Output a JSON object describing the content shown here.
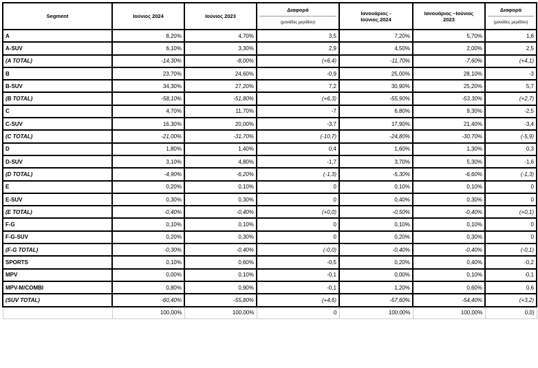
{
  "headers": {
    "segment": "Segment",
    "jun2024": "Ιούνιος 2024",
    "jun2023": "Ιούνιος 2023",
    "diff": "Διαφορά",
    "diff_sub": "(μονάδες μεριδίου)",
    "ytd2024": "Ιανουάριος - Ιούνιος 2024",
    "ytd2023": "Ιανουάριος –Ιούνιος 2023",
    "diff2": "Διαφορά",
    "diff2_sub": "(μονάδες μεριδίου)"
  },
  "rows": [
    {
      "segment": "A",
      "jun2024": "8,20%",
      "jun2023": "4,70%",
      "diff": "3,5",
      "ytd2024": "7,20%",
      "ytd2023": "5,70%",
      "diff2": "1,6",
      "total": false
    },
    {
      "segment": "A-SUV",
      "jun2024": "6,10%",
      "jun2023": "3,30%",
      "diff": "2,9",
      "ytd2024": "4,50%",
      "ytd2023": "2,00%",
      "diff2": "2,5",
      "total": false
    },
    {
      "segment": "(A TOTAL)",
      "jun2024": "-14,30%",
      "jun2023": "-8,00%",
      "diff": "(+6,4)",
      "ytd2024": "-11,70%",
      "ytd2023": "-7,60%",
      "diff2": "(+4,1)",
      "total": true
    },
    {
      "segment": "B",
      "jun2024": "23,70%",
      "jun2023": "24,60%",
      "diff": "-0,9",
      "ytd2024": "25,00%",
      "ytd2023": "28,10%",
      "diff2": "-3",
      "total": false
    },
    {
      "segment": "B-SUV",
      "jun2024": "34,30%",
      "jun2023": "27,20%",
      "diff": "7,2",
      "ytd2024": "30,90%",
      "ytd2023": "25,20%",
      "diff2": "5,7",
      "total": false
    },
    {
      "segment": "(B TOTAL)",
      "jun2024": "-58,10%",
      "jun2023": "-51,80%",
      "diff": "(+6,3)",
      "ytd2024": "-55,90%",
      "ytd2023": "-53,30%",
      "diff2": "(+2,7)",
      "total": true
    },
    {
      "segment": "C",
      "jun2024": "4,70%",
      "jun2023": "11,70%",
      "diff": "-7",
      "ytd2024": "6,80%",
      "ytd2023": "9,30%",
      "diff2": "-2,5",
      "total": false
    },
    {
      "segment": "C-SUV",
      "jun2024": "16,30%",
      "jun2023": "20,00%",
      "diff": "-3,7",
      "ytd2024": "17,90%",
      "ytd2023": "21,40%",
      "diff2": "-3,4",
      "total": false
    },
    {
      "segment": "(C TOTAL)",
      "jun2024": "-21,00%",
      "jun2023": "-31,70%",
      "diff": "(-10,7)",
      "ytd2024": "-24,80%",
      "ytd2023": "-30,70%",
      "diff2": "(-5,9)",
      "total": true
    },
    {
      "segment": "D",
      "jun2024": "1,80%",
      "jun2023": "1,40%",
      "diff": "0,4",
      "ytd2024": "1,60%",
      "ytd2023": "1,30%",
      "diff2": "0,3",
      "total": false
    },
    {
      "segment": "D-SUV",
      "jun2024": "3,10%",
      "jun2023": "4,80%",
      "diff": "-1,7",
      "ytd2024": "3,70%",
      "ytd2023": "5,30%",
      "diff2": "-1,6",
      "total": false
    },
    {
      "segment": "(D TOTAL)",
      "jun2024": "-4,90%",
      "jun2023": "-6,20%",
      "diff": "(-1,3)",
      "ytd2024": "-5,30%",
      "ytd2023": "-6,60%",
      "diff2": "(-1,3)",
      "total": true
    },
    {
      "segment": "E",
      "jun2024": "0,20%",
      "jun2023": "0,10%",
      "diff": "0",
      "ytd2024": "0,10%",
      "ytd2023": "0,10%",
      "diff2": "0",
      "total": false
    },
    {
      "segment": "E-SUV",
      "jun2024": "0,30%",
      "jun2023": "0,30%",
      "diff": "0",
      "ytd2024": "0,40%",
      "ytd2023": "0,30%",
      "diff2": "0",
      "total": false
    },
    {
      "segment": "(E TOTAL)",
      "jun2024": "-0,40%",
      "jun2023": "-0,40%",
      "diff": "(+0,0)",
      "ytd2024": "-0,50%",
      "ytd2023": "-0,40%",
      "diff2": "(+0,1)",
      "total": true
    },
    {
      "segment": "F-G",
      "jun2024": "0,10%",
      "jun2023": "0,10%",
      "diff": "0",
      "ytd2024": "0,10%",
      "ytd2023": "0,10%",
      "diff2": "0",
      "total": false
    },
    {
      "segment": "F-G-SUV",
      "jun2024": "0,20%",
      "jun2023": "0,30%",
      "diff": "0",
      "ytd2024": "0,20%",
      "ytd2023": "0,30%",
      "diff2": "0",
      "total": false
    },
    {
      "segment": "(F-G TOTAL)",
      "jun2024": "-0,30%",
      "jun2023": "-0,40%",
      "diff": "(-0,0)",
      "ytd2024": "-0,40%",
      "ytd2023": "-0,40%",
      "diff2": "(-0,1)",
      "total": true
    },
    {
      "segment": "SPORTS",
      "jun2024": "0,10%",
      "jun2023": "0,60%",
      "diff": "-0,5",
      "ytd2024": "0,20%",
      "ytd2023": "0,40%",
      "diff2": "-0,2",
      "total": false
    },
    {
      "segment": "MPV",
      "jun2024": "0,00%",
      "jun2023": "0,10%",
      "diff": "-0,1",
      "ytd2024": "0,00%",
      "ytd2023": "0,10%",
      "diff2": "-0,1",
      "total": false
    },
    {
      "segment": "MPV-M/COMBI",
      "jun2024": "0,80%",
      "jun2023": "0,90%",
      "diff": "-0,1",
      "ytd2024": "1,20%",
      "ytd2023": "0,60%",
      "diff2": "0,6",
      "total": false
    },
    {
      "segment": "(SUV TOTAL)",
      "jun2024": "-60,40%",
      "jun2023": "-55,80%",
      "diff": "(+4,6)",
      "ytd2024": "-57,60%",
      "ytd2023": "-54,40%",
      "diff2": "(+3,2)",
      "total": true
    }
  ],
  "final": {
    "segment": "",
    "jun2024": "100,00%",
    "jun2023": "100,00%",
    "diff": "0",
    "ytd2024": "100,00%",
    "ytd2023": "100,00%",
    "diff2": "0,0)"
  }
}
